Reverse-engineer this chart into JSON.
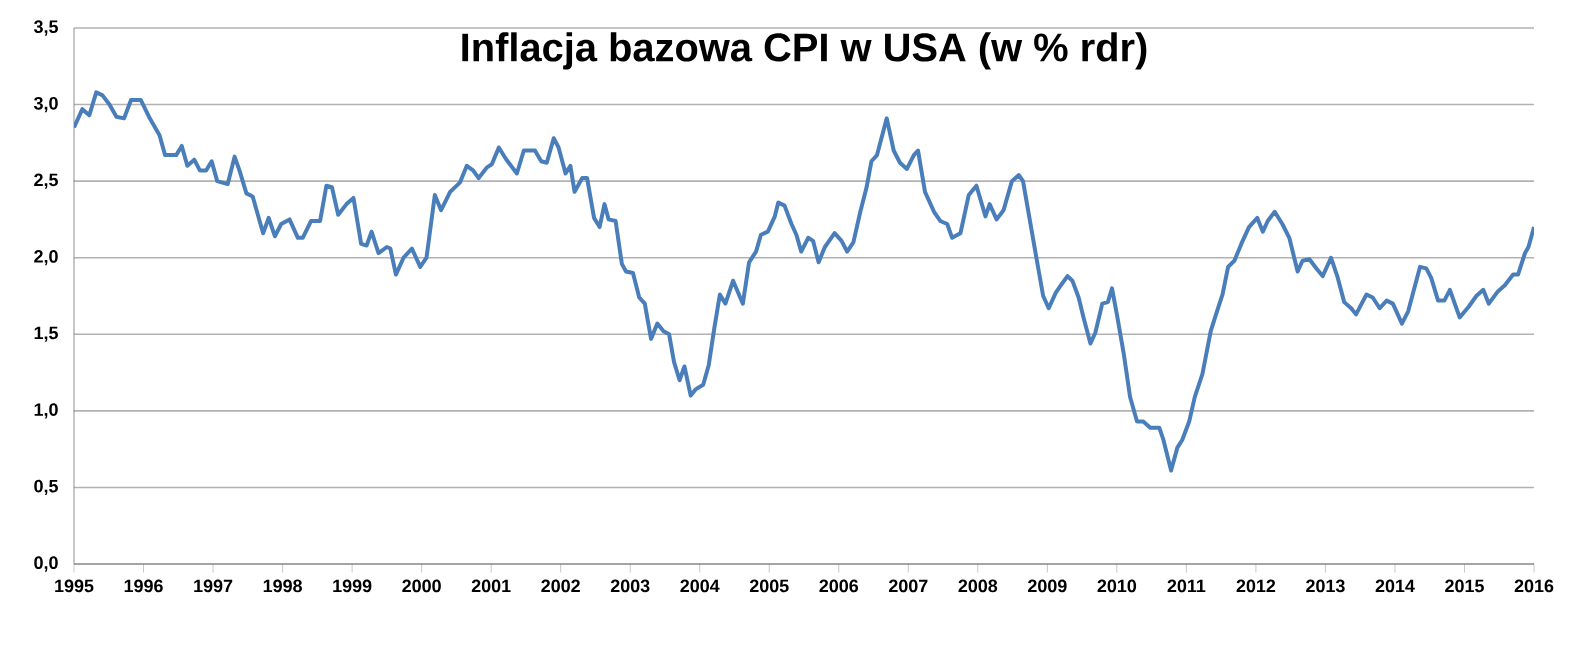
{
  "chart_data": {
    "type": "line",
    "title": "Inflacja bazowa CPI w USA (w % rdr)",
    "x": [
      1995.0,
      1995.12,
      1995.22,
      1995.32,
      1995.41,
      1995.51,
      1995.61,
      1995.72,
      1995.82,
      1995.96,
      1996.09,
      1996.23,
      1996.31,
      1996.47,
      1996.55,
      1996.63,
      1996.73,
      1996.81,
      1996.9,
      1996.98,
      1997.06,
      1997.21,
      1997.31,
      1997.38,
      1997.48,
      1997.57,
      1997.72,
      1997.8,
      1997.89,
      1997.98,
      1998.1,
      1998.22,
      1998.29,
      1998.41,
      1998.54,
      1998.63,
      1998.71,
      1998.8,
      1998.92,
      1999.02,
      1999.13,
      1999.21,
      1999.28,
      1999.38,
      1999.5,
      1999.55,
      1999.63,
      1999.74,
      1999.86,
      1999.98,
      2000.07,
      2000.19,
      2000.28,
      2000.41,
      2000.55,
      2000.65,
      2000.74,
      2000.82,
      2000.94,
      2001.01,
      2001.11,
      2001.22,
      2001.37,
      2001.47,
      2001.63,
      2001.72,
      2001.8,
      2001.9,
      2001.97,
      2002.07,
      2002.14,
      2002.2,
      2002.31,
      2002.38,
      2002.48,
      2002.56,
      2002.63,
      2002.69,
      2002.79,
      2002.88,
      2002.94,
      2003.04,
      2003.13,
      2003.21,
      2003.3,
      2003.39,
      2003.48,
      2003.56,
      2003.63,
      2003.71,
      2003.78,
      2003.87,
      2003.94,
      2004.05,
      2004.13,
      2004.21,
      2004.29,
      2004.37,
      2004.48,
      2004.62,
      2004.71,
      2004.81,
      2004.88,
      2004.98,
      2005.08,
      2005.13,
      2005.22,
      2005.32,
      2005.39,
      2005.46,
      2005.56,
      2005.63,
      2005.71,
      2005.8,
      2005.94,
      2006.04,
      2006.12,
      2006.21,
      2006.31,
      2006.4,
      2006.47,
      2006.55,
      2006.69,
      2006.79,
      2006.88,
      2006.98,
      2007.08,
      2007.14,
      2007.24,
      2007.37,
      2007.46,
      2007.56,
      2007.63,
      2007.75,
      2007.87,
      2007.98,
      2008.11,
      2008.17,
      2008.27,
      2008.37,
      2008.49,
      2008.59,
      2008.65,
      2008.75,
      2008.85,
      2008.94,
      2009.02,
      2009.12,
      2009.21,
      2009.29,
      2009.36,
      2009.45,
      2009.52,
      2009.62,
      2009.69,
      2009.79,
      2009.87,
      2009.93,
      2010.0,
      2010.1,
      2010.19,
      2010.29,
      2010.38,
      2010.48,
      2010.61,
      2010.67,
      2010.78,
      2010.87,
      2010.94,
      2011.04,
      2011.12,
      2011.23,
      2011.35,
      2011.44,
      2011.52,
      2011.6,
      2011.69,
      2011.79,
      2011.9,
      2012.02,
      2012.1,
      2012.17,
      2012.27,
      2012.38,
      2012.48,
      2012.6,
      2012.67,
      2012.77,
      2012.87,
      2012.96,
      2013.08,
      2013.17,
      2013.27,
      2013.37,
      2013.44,
      2013.59,
      2013.68,
      2013.78,
      2013.88,
      2013.97,
      2014.1,
      2014.19,
      2014.36,
      2014.45,
      2014.52,
      2014.62,
      2014.71,
      2014.79,
      2014.93,
      2015.06,
      2015.17,
      2015.27,
      2015.35,
      2015.48,
      2015.58,
      2015.7,
      2015.77,
      2015.87,
      2015.92,
      2016.0
    ],
    "series": [
      {
        "color": "#4a7ebb",
        "values": [
          2.85,
          2.97,
          2.93,
          3.08,
          3.06,
          3.0,
          2.92,
          2.91,
          3.03,
          3.03,
          2.91,
          2.8,
          2.67,
          2.67,
          2.73,
          2.6,
          2.64,
          2.57,
          2.57,
          2.63,
          2.5,
          2.48,
          2.66,
          2.57,
          2.42,
          2.4,
          2.16,
          2.26,
          2.14,
          2.22,
          2.25,
          2.13,
          2.13,
          2.24,
          2.24,
          2.47,
          2.46,
          2.28,
          2.35,
          2.39,
          2.09,
          2.08,
          2.17,
          2.03,
          2.07,
          2.06,
          1.89,
          2.0,
          2.06,
          1.94,
          2.0,
          2.41,
          2.31,
          2.43,
          2.49,
          2.6,
          2.57,
          2.52,
          2.59,
          2.61,
          2.72,
          2.64,
          2.55,
          2.7,
          2.7,
          2.63,
          2.62,
          2.78,
          2.72,
          2.55,
          2.6,
          2.43,
          2.52,
          2.52,
          2.26,
          2.2,
          2.35,
          2.25,
          2.24,
          1.96,
          1.91,
          1.9,
          1.74,
          1.7,
          1.47,
          1.57,
          1.52,
          1.5,
          1.32,
          1.2,
          1.29,
          1.1,
          1.14,
          1.17,
          1.3,
          1.54,
          1.76,
          1.7,
          1.85,
          1.7,
          1.97,
          2.04,
          2.15,
          2.17,
          2.27,
          2.36,
          2.34,
          2.22,
          2.15,
          2.04,
          2.13,
          2.11,
          1.97,
          2.07,
          2.16,
          2.11,
          2.04,
          2.1,
          2.3,
          2.46,
          2.63,
          2.67,
          2.91,
          2.7,
          2.62,
          2.58,
          2.67,
          2.7,
          2.43,
          2.3,
          2.24,
          2.22,
          2.13,
          2.16,
          2.41,
          2.47,
          2.27,
          2.35,
          2.25,
          2.31,
          2.5,
          2.54,
          2.5,
          2.24,
          1.98,
          1.75,
          1.67,
          1.77,
          1.83,
          1.88,
          1.85,
          1.74,
          1.61,
          1.44,
          1.51,
          1.7,
          1.71,
          1.8,
          1.63,
          1.37,
          1.09,
          0.93,
          0.93,
          0.89,
          0.89,
          0.81,
          0.61,
          0.76,
          0.81,
          0.93,
          1.09,
          1.24,
          1.52,
          1.65,
          1.76,
          1.94,
          1.98,
          2.09,
          2.2,
          2.26,
          2.17,
          2.24,
          2.3,
          2.22,
          2.13,
          1.91,
          1.98,
          1.99,
          1.93,
          1.88,
          2.0,
          1.88,
          1.71,
          1.67,
          1.63,
          1.76,
          1.74,
          1.67,
          1.72,
          1.7,
          1.57,
          1.65,
          1.94,
          1.93,
          1.87,
          1.72,
          1.72,
          1.79,
          1.61,
          1.68,
          1.75,
          1.79,
          1.7,
          1.78,
          1.82,
          1.89,
          1.89,
          2.03,
          2.07,
          2.2
        ]
      }
    ],
    "xlim": [
      1995,
      2016
    ],
    "xticks": [
      1995,
      1996,
      1997,
      1998,
      1999,
      2000,
      2001,
      2002,
      2003,
      2004,
      2005,
      2006,
      2007,
      2008,
      2009,
      2010,
      2011,
      2012,
      2013,
      2014,
      2015,
      2016
    ],
    "ylim": [
      0,
      3.5
    ],
    "yticks": [
      {
        "value": 0,
        "label": "0,0"
      },
      {
        "value": 0.5,
        "label": "0,5"
      },
      {
        "value": 1,
        "label": "1,0"
      },
      {
        "value": 1.5,
        "label": "1,5"
      },
      {
        "value": 2,
        "label": "2,0"
      },
      {
        "value": 2.5,
        "label": "2,5"
      },
      {
        "value": 3,
        "label": "3,0"
      },
      {
        "value": 3.5,
        "label": "3,5"
      }
    ],
    "grid": "y",
    "legend": false,
    "marker": "none",
    "line_style": "solid"
  }
}
